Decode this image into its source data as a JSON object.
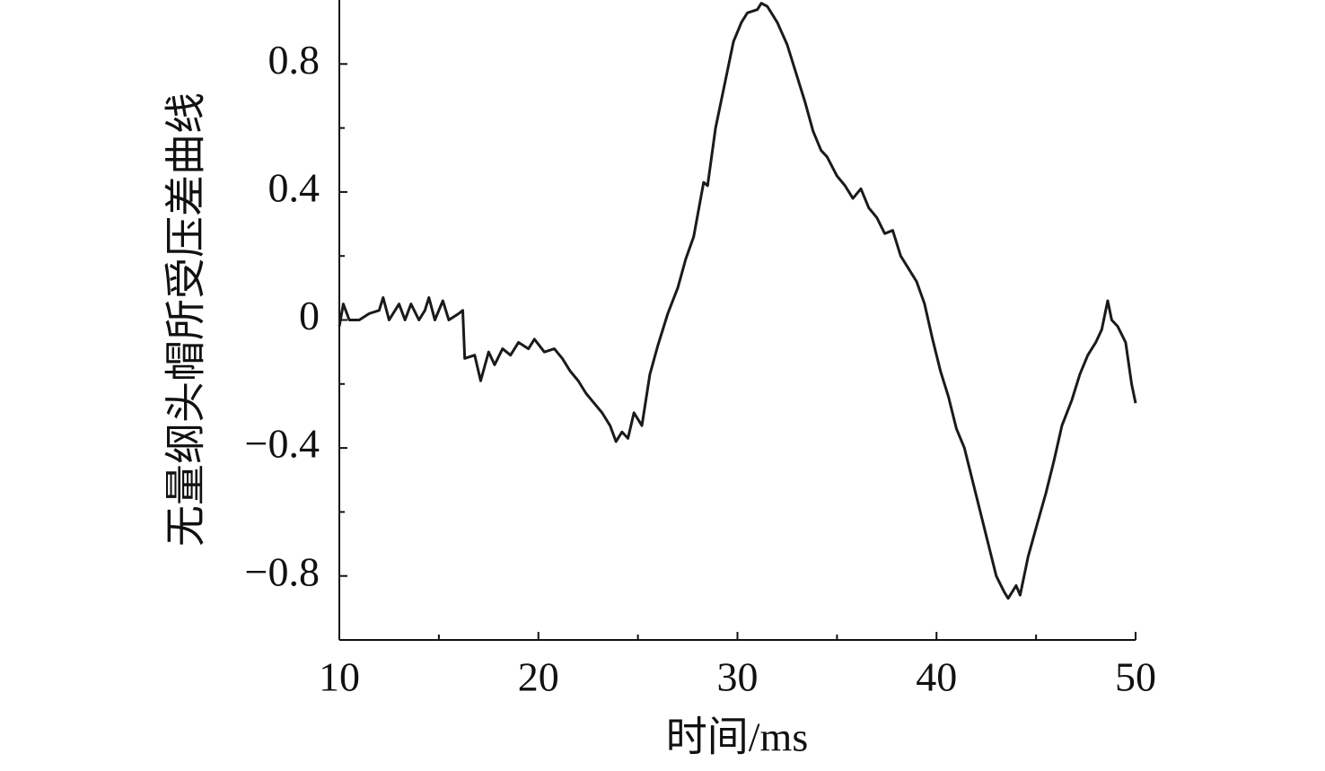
{
  "chart_data": {
    "type": "line",
    "xlabel": "时间/ms",
    "ylabel": "无量纲头帽所受压差曲线",
    "color": "#1a1a1a",
    "xlim": [
      10,
      50
    ],
    "ylim": [
      -1,
      1
    ],
    "xticks": [
      10,
      20,
      30,
      40,
      50
    ],
    "xminor_ticks": [
      15,
      25,
      35,
      45
    ],
    "yticks": [
      {
        "value": -0.8,
        "label": "−0.8"
      },
      {
        "value": -0.4,
        "label": "−0.4"
      },
      0,
      0.4,
      0.8
    ],
    "yminor_ticks": [
      -0.6,
      -0.2,
      0.2,
      0.6
    ],
    "x": [
      10.0,
      10.2,
      10.5,
      11,
      11.5,
      12,
      12.2,
      12.5,
      13,
      13.3,
      13.6,
      14,
      14.3,
      14.5,
      14.8,
      15.2,
      15.5,
      16,
      16.2,
      16.3,
      16.8,
      17.1,
      17.5,
      17.8,
      18.2,
      18.6,
      19,
      19.5,
      19.8,
      20.3,
      20.8,
      21.2,
      21.6,
      22,
      22.4,
      22.8,
      23.2,
      23.6,
      23.9,
      24.2,
      24.5,
      24.8,
      25.2,
      25.6,
      26,
      26.5,
      27,
      27.4,
      27.8,
      28.3,
      28.5,
      28.9,
      29.4,
      29.8,
      30.2,
      30.5,
      31,
      31.2,
      31.5,
      32,
      32.5,
      32.9,
      33.4,
      33.8,
      34.2,
      34.5,
      35,
      35.4,
      35.8,
      36.2,
      36.6,
      37,
      37.4,
      37.8,
      38.2,
      38.6,
      39,
      39.4,
      39.8,
      40.2,
      40.6,
      41,
      41.4,
      41.8,
      42.2,
      42.6,
      43,
      43.4,
      43.6,
      44,
      44.2,
      44.6,
      45,
      45.5,
      45.9,
      46.3,
      46.8,
      47.2,
      47.6,
      48,
      48.3,
      48.6,
      48.8,
      49.1,
      49.5,
      49.8,
      50
    ],
    "values": [
      -0.02,
      0.05,
      0.0,
      0.0,
      0.02,
      0.03,
      0.07,
      0.0,
      0.05,
      0.0,
      0.05,
      0.0,
      0.03,
      0.07,
      0.0,
      0.06,
      0.0,
      0.02,
      0.03,
      -0.12,
      -0.11,
      -0.19,
      -0.1,
      -0.14,
      -0.09,
      -0.11,
      -0.07,
      -0.09,
      -0.06,
      -0.1,
      -0.09,
      -0.12,
      -0.16,
      -0.19,
      -0.23,
      -0.26,
      -0.29,
      -0.33,
      -0.38,
      -0.35,
      -0.37,
      -0.29,
      -0.33,
      -0.17,
      -0.08,
      0.02,
      0.1,
      0.19,
      0.26,
      0.43,
      0.42,
      0.6,
      0.75,
      0.87,
      0.93,
      0.96,
      0.97,
      0.99,
      0.98,
      0.93,
      0.86,
      0.78,
      0.68,
      0.59,
      0.53,
      0.51,
      0.45,
      0.42,
      0.38,
      0.41,
      0.35,
      0.32,
      0.27,
      0.28,
      0.2,
      0.16,
      0.12,
      0.05,
      -0.06,
      -0.16,
      -0.24,
      -0.34,
      -0.4,
      -0.5,
      -0.6,
      -0.7,
      -0.8,
      -0.85,
      -0.87,
      -0.83,
      -0.86,
      -0.74,
      -0.65,
      -0.54,
      -0.44,
      -0.33,
      -0.25,
      -0.17,
      -0.11,
      -0.07,
      -0.03,
      0.06,
      0.0,
      -0.02,
      -0.07,
      -0.2,
      -0.26
    ]
  }
}
